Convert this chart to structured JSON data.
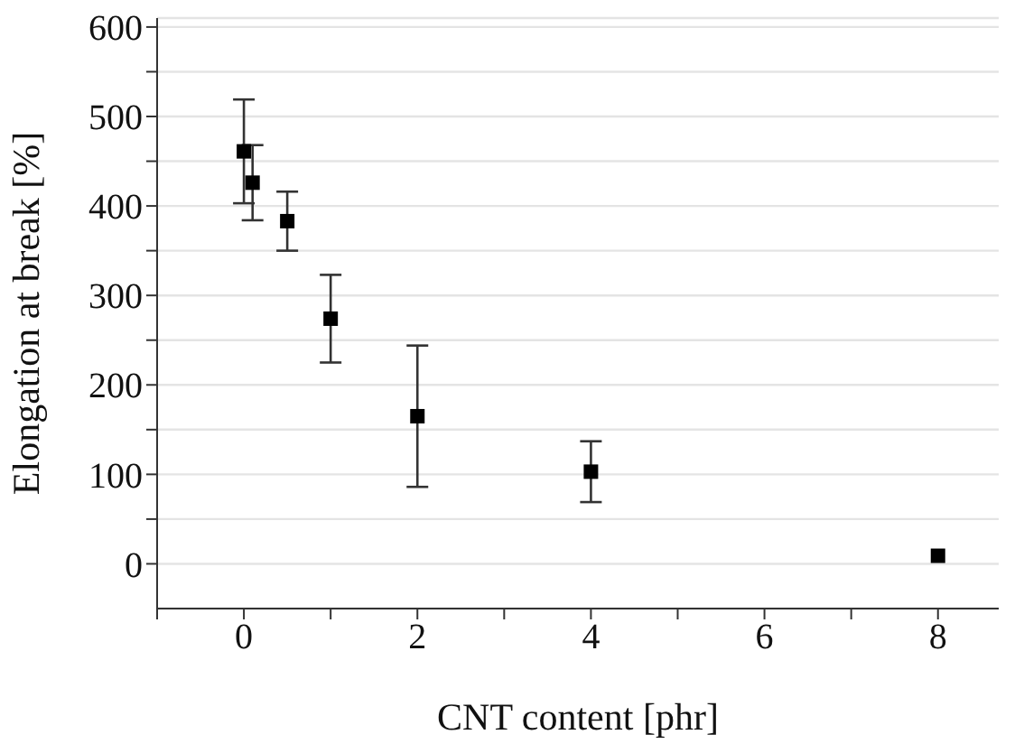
{
  "chart_data": {
    "type": "scatter",
    "xlabel": "CNT content [phr]",
    "ylabel": "Elongation at break [%]",
    "x": [
      0,
      0.1,
      0.5,
      1,
      2,
      4,
      8
    ],
    "series": [
      {
        "color": "#000000",
        "values": [
          461,
          426,
          383,
          274,
          165,
          103,
          9
        ],
        "errors": [
          58,
          42,
          33,
          49,
          79,
          34,
          null
        ]
      }
    ],
    "xlim": [
      -1,
      8.7
    ],
    "xticks": [
      {
        "value": -1,
        "label": null
      },
      0,
      {
        "value": 1,
        "label": null
      },
      2,
      {
        "value": 3,
        "label": null
      },
      4,
      {
        "value": 5,
        "label": null
      },
      6,
      {
        "value": 7,
        "label": null
      },
      8
    ],
    "ylim": [
      -50,
      610
    ],
    "yticks": [
      0,
      {
        "value": 50,
        "label": null
      },
      100,
      {
        "value": 150,
        "label": null
      },
      200,
      {
        "value": 250,
        "label": null
      },
      300,
      {
        "value": 350,
        "label": null
      },
      400,
      {
        "value": 450,
        "label": null
      },
      500,
      {
        "value": 550,
        "label": null
      },
      600
    ],
    "grid": "y",
    "marker": "square",
    "legend": false
  }
}
